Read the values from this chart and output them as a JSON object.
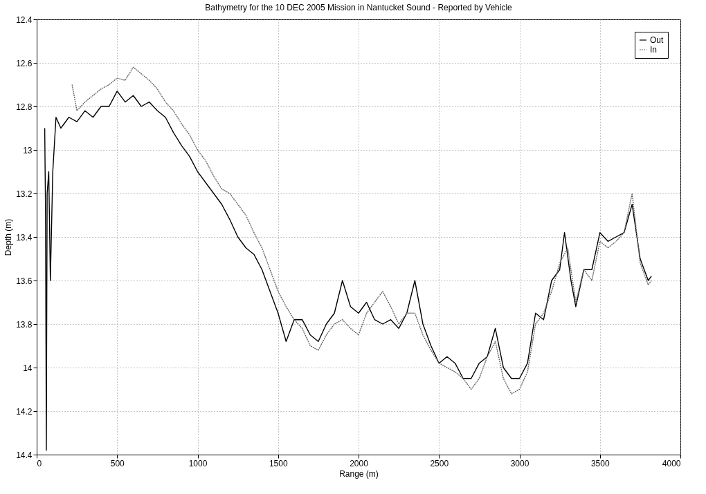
{
  "chart_data": {
    "type": "line",
    "title": "Bathymetry for the 10 DEC 2005 Mission in Nantucket Sound - Reported by Vehicle",
    "xlabel": "Range (m)",
    "ylabel": "Depth (m)",
    "xlim": [
      0,
      4000
    ],
    "xticks": [
      0,
      500,
      1000,
      1500,
      2000,
      2500,
      3000,
      3500,
      4000
    ],
    "ylim": [
      14.4,
      12.4
    ],
    "yticks": [
      12.4,
      12.6,
      12.8,
      13,
      13.2,
      13.4,
      13.6,
      13.8,
      14,
      14.2,
      14.4
    ],
    "grid": true,
    "legend": "top right",
    "marker": "none",
    "series": [
      {
        "name": "Out",
        "color": "#000000",
        "line_style": "solid",
        "x": [
          50,
          55,
          60,
          65,
          75,
          85,
          100,
          120,
          150,
          200,
          250,
          300,
          350,
          400,
          450,
          500,
          550,
          600,
          650,
          700,
          750,
          800,
          850,
          900,
          950,
          1000,
          1050,
          1100,
          1150,
          1200,
          1250,
          1300,
          1350,
          1400,
          1450,
          1500,
          1550,
          1600,
          1650,
          1700,
          1750,
          1800,
          1850,
          1900,
          1950,
          2000,
          2050,
          2100,
          2150,
          2200,
          2250,
          2300,
          2350,
          2400,
          2450,
          2500,
          2550,
          2600,
          2650,
          2700,
          2750,
          2800,
          2850,
          2900,
          2950,
          3000,
          3050,
          3100,
          3150,
          3200,
          3250,
          3280,
          3320,
          3350,
          3400,
          3450,
          3500,
          3550,
          3600,
          3650,
          3700,
          3750,
          3800,
          3820
        ],
        "values": [
          12.9,
          13.3,
          14.38,
          13.2,
          13.1,
          13.6,
          13.1,
          12.85,
          12.9,
          12.85,
          12.87,
          12.82,
          12.85,
          12.8,
          12.8,
          12.73,
          12.78,
          12.75,
          12.8,
          12.78,
          12.82,
          12.85,
          12.92,
          12.98,
          13.03,
          13.1,
          13.15,
          13.2,
          13.25,
          13.32,
          13.4,
          13.45,
          13.48,
          13.55,
          13.65,
          13.75,
          13.88,
          13.78,
          13.78,
          13.85,
          13.88,
          13.8,
          13.75,
          13.6,
          13.72,
          13.75,
          13.7,
          13.78,
          13.8,
          13.78,
          13.82,
          13.75,
          13.6,
          13.8,
          13.9,
          13.98,
          13.95,
          13.98,
          14.05,
          14.05,
          13.98,
          13.95,
          13.82,
          14.0,
          14.05,
          14.05,
          13.98,
          13.75,
          13.78,
          13.6,
          13.55,
          13.38,
          13.6,
          13.72,
          13.55,
          13.55,
          13.38,
          13.42,
          13.4,
          13.38,
          13.25,
          13.5,
          13.6,
          13.58
        ]
      },
      {
        "name": "In",
        "color": "#666666",
        "line_style": "dotted",
        "x": [
          220,
          250,
          300,
          350,
          400,
          450,
          500,
          550,
          600,
          650,
          700,
          750,
          800,
          850,
          900,
          950,
          1000,
          1050,
          1100,
          1150,
          1200,
          1250,
          1300,
          1350,
          1400,
          1450,
          1500,
          1550,
          1600,
          1650,
          1700,
          1750,
          1800,
          1850,
          1900,
          1950,
          2000,
          2050,
          2100,
          2150,
          2200,
          2250,
          2300,
          2350,
          2400,
          2450,
          2500,
          2550,
          2600,
          2650,
          2700,
          2750,
          2800,
          2850,
          2900,
          2950,
          3000,
          3050,
          3100,
          3150,
          3200,
          3250,
          3300,
          3350,
          3400,
          3450,
          3500,
          3550,
          3600,
          3650,
          3700,
          3750,
          3800,
          3820
        ],
        "values": [
          12.7,
          12.82,
          12.78,
          12.75,
          12.72,
          12.7,
          12.67,
          12.68,
          12.62,
          12.65,
          12.68,
          12.72,
          12.78,
          12.82,
          12.88,
          12.93,
          13.0,
          13.05,
          13.12,
          13.18,
          13.2,
          13.25,
          13.3,
          13.38,
          13.45,
          13.55,
          13.65,
          13.72,
          13.78,
          13.82,
          13.9,
          13.92,
          13.85,
          13.8,
          13.78,
          13.82,
          13.85,
          13.75,
          13.7,
          13.65,
          13.72,
          13.8,
          13.75,
          13.75,
          13.85,
          13.92,
          13.98,
          14.0,
          14.02,
          14.05,
          14.1,
          14.05,
          13.95,
          13.88,
          14.05,
          14.12,
          14.1,
          14.02,
          13.8,
          13.75,
          13.65,
          13.52,
          13.45,
          13.7,
          13.55,
          13.6,
          13.42,
          13.45,
          13.42,
          13.38,
          13.2,
          13.52,
          13.62,
          13.6
        ]
      }
    ]
  }
}
